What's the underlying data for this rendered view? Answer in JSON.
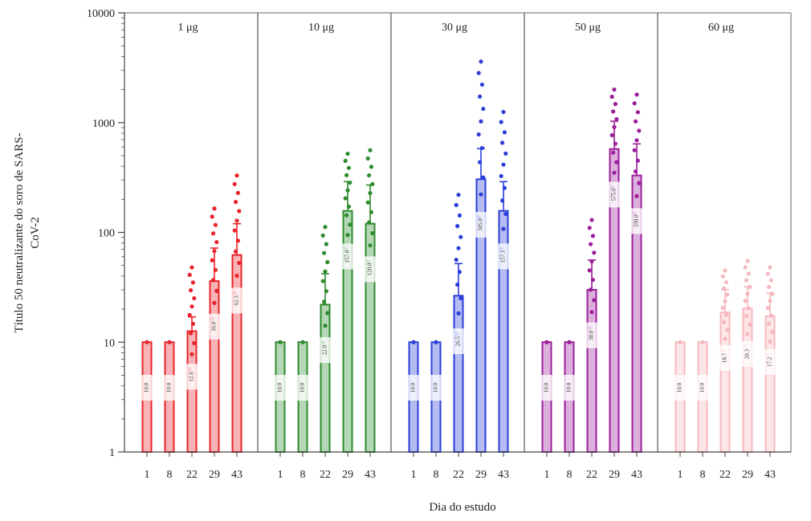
{
  "chart_data": {
    "type": "bar",
    "ylabel": "Título 50 neutralizante do soro de SARS-CoV-2",
    "xlabel": "Dia do estudo",
    "yscale": "log",
    "ylim": [
      1,
      10000
    ],
    "y_ticks": [
      "10000",
      "1000",
      "100",
      "10",
      "1"
    ],
    "categories": [
      "1",
      "8",
      "22",
      "29",
      "43"
    ],
    "grid": false,
    "panels": [
      {
        "name": "1 μg",
        "color": "#e8242a",
        "values": [
          10.0,
          10.0,
          12.6,
          36.0,
          62.3
        ],
        "value_labels": [
          "10.0",
          "10.0",
          "12.6",
          "36.0",
          "62.3"
        ],
        "err_upper": [
          10,
          10,
          17,
          72,
          120
        ],
        "max_points": [
          10,
          10,
          48,
          165,
          330
        ]
      },
      {
        "name": "10 μg",
        "color": "#2e8b2e",
        "values": [
          10.0,
          10.0,
          22.0,
          157.0,
          120.0
        ],
        "value_labels": [
          "10.0",
          "10.0",
          "22.0",
          "157.0",
          "120.0"
        ],
        "err_upper": [
          10,
          10,
          42,
          290,
          270
        ],
        "max_points": [
          10,
          10,
          112,
          520,
          560
        ]
      },
      {
        "name": "30 μg",
        "color": "#2b3fd8",
        "values": [
          10.0,
          10.0,
          26.5,
          305.0,
          157.1
        ],
        "value_labels": [
          "10.0",
          "10.0",
          "26.5",
          "305.0",
          "157.1"
        ],
        "err_upper": [
          10,
          10,
          52,
          580,
          290
        ],
        "max_points": [
          10,
          10,
          220,
          3600,
          1250
        ]
      },
      {
        "name": "50 μg",
        "color": "#9b1e9b",
        "values": [
          10.0,
          10.0,
          30.0,
          575.0,
          330.0
        ],
        "value_labels": [
          "10.0",
          "10.0",
          "30.0",
          "575.0",
          "330.0"
        ],
        "err_upper": [
          10,
          10,
          56,
          1030,
          640
        ],
        "max_points": [
          10,
          10,
          130,
          2000,
          1800
        ]
      },
      {
        "name": "60 μg",
        "color": "#f6b8be",
        "values": [
          10.0,
          10.0,
          18.7,
          20.3,
          17.2
        ],
        "value_labels": [
          "10.0",
          "10.0",
          "18.7",
          "20.3",
          "17.2"
        ],
        "err_upper": [
          10,
          10,
          30,
          32,
          28
        ],
        "max_points": [
          10,
          10,
          45,
          55,
          48
        ]
      }
    ]
  }
}
